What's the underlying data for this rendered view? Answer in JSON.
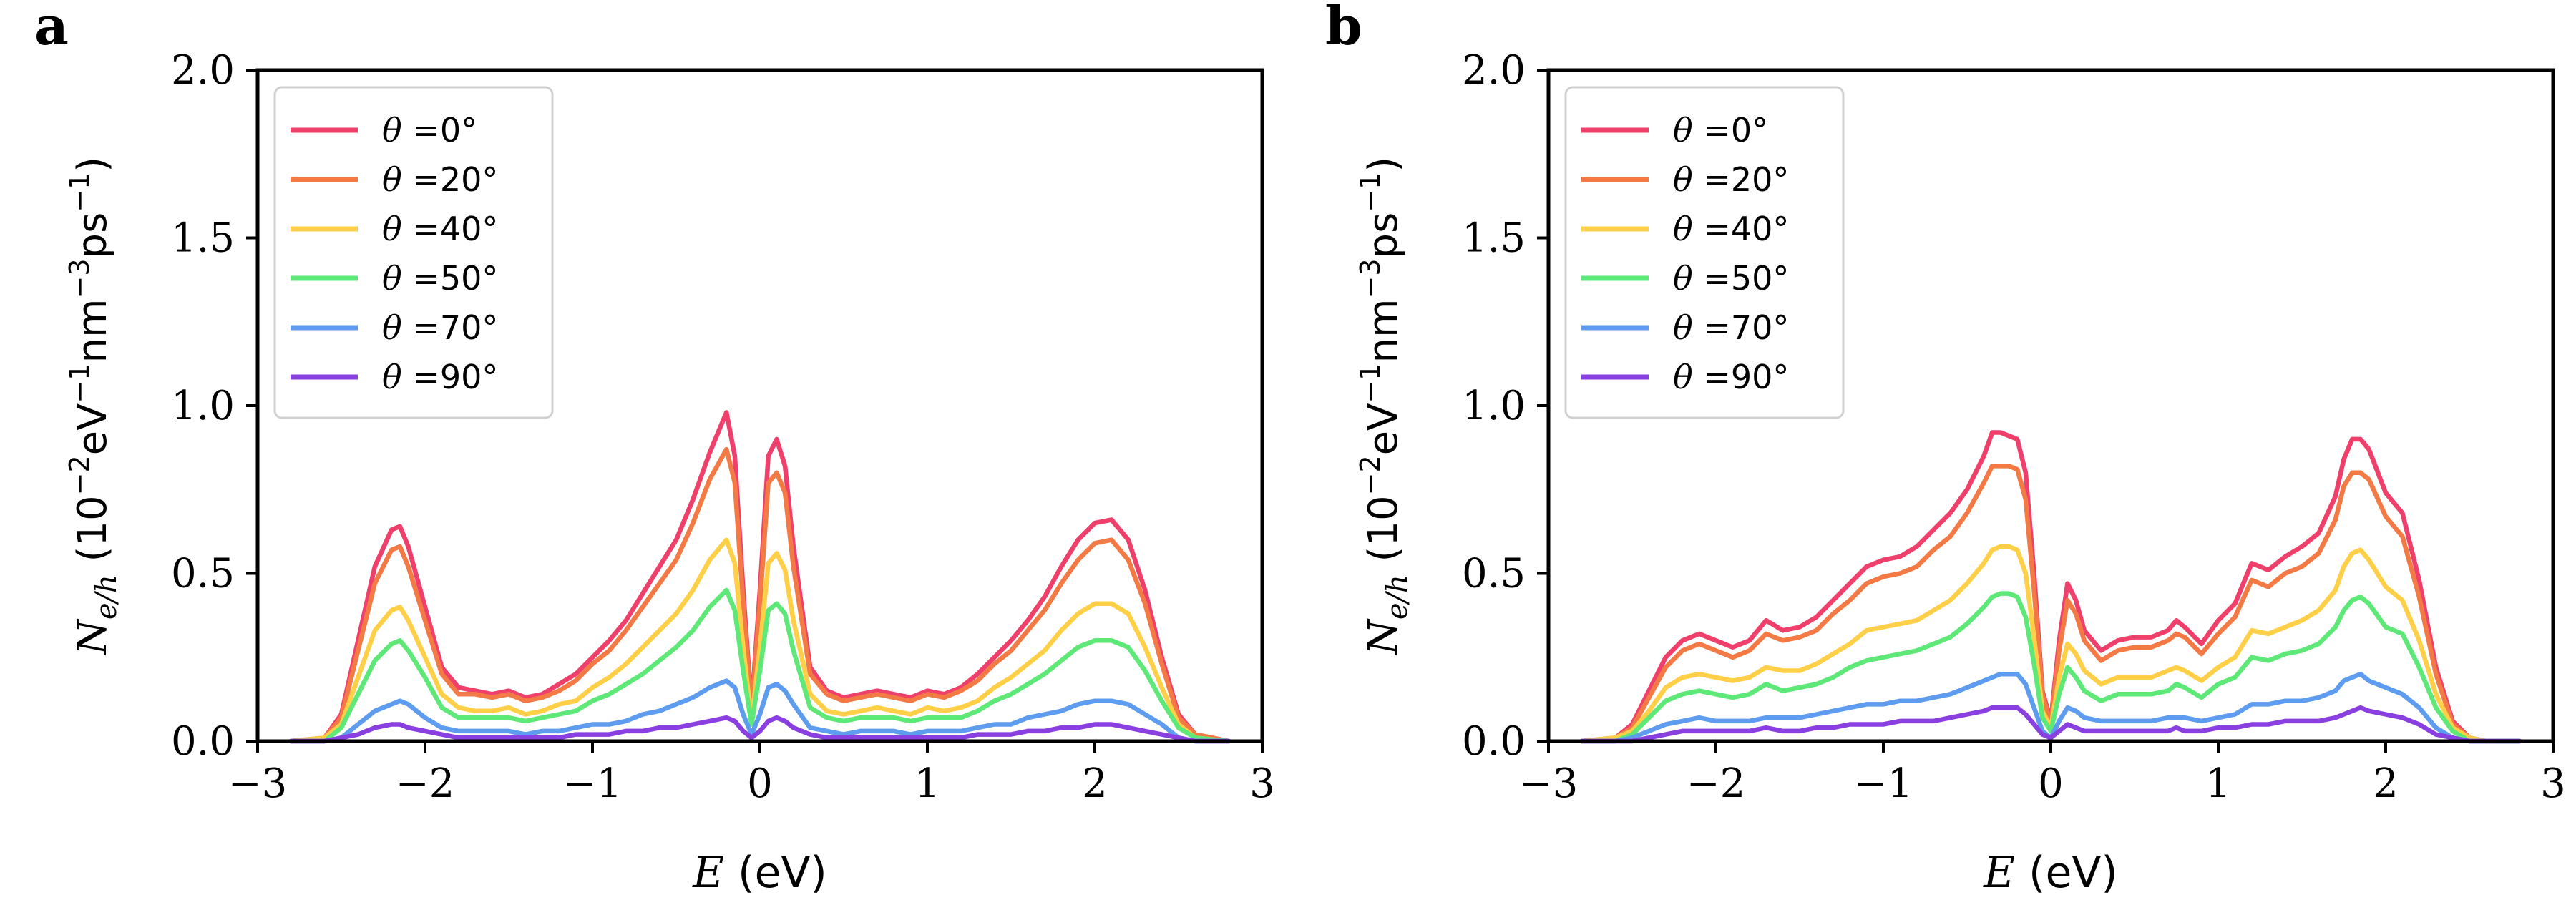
{
  "chart_data": [
    {
      "type": "line",
      "panel_label": "a",
      "xlabel": "E (eV)",
      "ylabel": "N_e/h (10^-2 eV^-1 nm^-3 ps^-1)",
      "xlim": [
        -3,
        3
      ],
      "ylim": [
        0,
        2
      ],
      "xticks": [
        "−3",
        "−2",
        "−1",
        "0",
        "1",
        "2",
        "3"
      ],
      "yticks": [
        "0.0",
        "0.5",
        "1.0",
        "1.5",
        "2.0"
      ],
      "legend_position": "top-left",
      "x": [
        -2.8,
        -2.6,
        -2.5,
        -2.4,
        -2.3,
        -2.2,
        -2.15,
        -2.1,
        -2.0,
        -1.9,
        -1.8,
        -1.7,
        -1.6,
        -1.5,
        -1.4,
        -1.3,
        -1.2,
        -1.1,
        -1.0,
        -0.9,
        -0.8,
        -0.7,
        -0.6,
        -0.5,
        -0.4,
        -0.3,
        -0.2,
        -0.15,
        -0.1,
        -0.05,
        0.0,
        0.05,
        0.1,
        0.15,
        0.2,
        0.3,
        0.4,
        0.5,
        0.6,
        0.7,
        0.8,
        0.9,
        1.0,
        1.1,
        1.2,
        1.3,
        1.4,
        1.5,
        1.6,
        1.7,
        1.8,
        1.9,
        2.0,
        2.1,
        2.2,
        2.3,
        2.4,
        2.5,
        2.6,
        2.8
      ],
      "series": [
        {
          "name": "θ =0°",
          "color": "#ef3f6b",
          "values": [
            0.0,
            0.01,
            0.08,
            0.3,
            0.52,
            0.63,
            0.64,
            0.58,
            0.4,
            0.22,
            0.16,
            0.15,
            0.14,
            0.15,
            0.13,
            0.14,
            0.17,
            0.2,
            0.25,
            0.3,
            0.36,
            0.44,
            0.52,
            0.6,
            0.72,
            0.86,
            0.98,
            0.85,
            0.45,
            0.1,
            0.45,
            0.85,
            0.9,
            0.82,
            0.58,
            0.22,
            0.15,
            0.13,
            0.14,
            0.15,
            0.14,
            0.13,
            0.15,
            0.14,
            0.16,
            0.2,
            0.25,
            0.3,
            0.36,
            0.43,
            0.52,
            0.6,
            0.65,
            0.66,
            0.6,
            0.45,
            0.25,
            0.08,
            0.02,
            0.0
          ]
        },
        {
          "name": "θ =20°",
          "color": "#f47a45",
          "values": [
            0.0,
            0.01,
            0.07,
            0.27,
            0.47,
            0.57,
            0.58,
            0.52,
            0.36,
            0.2,
            0.14,
            0.14,
            0.13,
            0.14,
            0.12,
            0.13,
            0.15,
            0.18,
            0.23,
            0.27,
            0.33,
            0.4,
            0.47,
            0.54,
            0.65,
            0.78,
            0.87,
            0.77,
            0.41,
            0.09,
            0.41,
            0.77,
            0.8,
            0.74,
            0.52,
            0.2,
            0.14,
            0.12,
            0.13,
            0.14,
            0.13,
            0.12,
            0.14,
            0.13,
            0.15,
            0.18,
            0.23,
            0.27,
            0.33,
            0.39,
            0.47,
            0.54,
            0.59,
            0.6,
            0.54,
            0.41,
            0.23,
            0.07,
            0.02,
            0.0
          ]
        },
        {
          "name": "θ =40°",
          "color": "#ffcf47",
          "values": [
            0.0,
            0.01,
            0.05,
            0.19,
            0.33,
            0.39,
            0.4,
            0.36,
            0.25,
            0.14,
            0.1,
            0.09,
            0.09,
            0.1,
            0.08,
            0.09,
            0.11,
            0.12,
            0.16,
            0.19,
            0.23,
            0.28,
            0.33,
            0.38,
            0.45,
            0.54,
            0.6,
            0.53,
            0.28,
            0.06,
            0.28,
            0.53,
            0.56,
            0.51,
            0.36,
            0.14,
            0.09,
            0.08,
            0.09,
            0.1,
            0.09,
            0.08,
            0.1,
            0.09,
            0.1,
            0.12,
            0.16,
            0.19,
            0.23,
            0.27,
            0.33,
            0.38,
            0.41,
            0.41,
            0.38,
            0.28,
            0.16,
            0.05,
            0.01,
            0.0
          ]
        },
        {
          "name": "θ =50°",
          "color": "#5ee878",
          "values": [
            0.0,
            0.0,
            0.04,
            0.14,
            0.24,
            0.29,
            0.3,
            0.27,
            0.19,
            0.1,
            0.07,
            0.07,
            0.07,
            0.07,
            0.06,
            0.07,
            0.08,
            0.09,
            0.12,
            0.14,
            0.17,
            0.2,
            0.24,
            0.28,
            0.33,
            0.4,
            0.45,
            0.39,
            0.21,
            0.05,
            0.21,
            0.39,
            0.41,
            0.38,
            0.27,
            0.1,
            0.07,
            0.06,
            0.07,
            0.07,
            0.07,
            0.06,
            0.07,
            0.07,
            0.07,
            0.09,
            0.12,
            0.14,
            0.17,
            0.2,
            0.24,
            0.28,
            0.3,
            0.3,
            0.28,
            0.21,
            0.12,
            0.04,
            0.01,
            0.0
          ]
        },
        {
          "name": "θ =70°",
          "color": "#5d9cee",
          "values": [
            0.0,
            0.0,
            0.01,
            0.05,
            0.09,
            0.11,
            0.12,
            0.11,
            0.07,
            0.04,
            0.03,
            0.03,
            0.03,
            0.03,
            0.02,
            0.03,
            0.03,
            0.04,
            0.05,
            0.05,
            0.06,
            0.08,
            0.09,
            0.11,
            0.13,
            0.16,
            0.18,
            0.16,
            0.08,
            0.02,
            0.08,
            0.16,
            0.17,
            0.15,
            0.11,
            0.04,
            0.03,
            0.02,
            0.03,
            0.03,
            0.03,
            0.02,
            0.03,
            0.03,
            0.03,
            0.04,
            0.05,
            0.05,
            0.07,
            0.08,
            0.09,
            0.11,
            0.12,
            0.12,
            0.11,
            0.08,
            0.05,
            0.01,
            0.0,
            0.0
          ]
        },
        {
          "name": "θ =90°",
          "color": "#8a3fe0",
          "values": [
            0.0,
            0.0,
            0.01,
            0.02,
            0.04,
            0.05,
            0.05,
            0.04,
            0.03,
            0.02,
            0.01,
            0.01,
            0.01,
            0.01,
            0.01,
            0.01,
            0.01,
            0.02,
            0.02,
            0.02,
            0.03,
            0.03,
            0.04,
            0.04,
            0.05,
            0.06,
            0.07,
            0.06,
            0.03,
            0.01,
            0.03,
            0.06,
            0.07,
            0.06,
            0.04,
            0.02,
            0.01,
            0.01,
            0.01,
            0.01,
            0.01,
            0.01,
            0.01,
            0.01,
            0.01,
            0.02,
            0.02,
            0.02,
            0.03,
            0.03,
            0.04,
            0.04,
            0.05,
            0.05,
            0.04,
            0.03,
            0.02,
            0.01,
            0.0,
            0.0
          ]
        }
      ]
    },
    {
      "type": "line",
      "panel_label": "b",
      "xlabel": "E (eV)",
      "ylabel": "N_e/h (10^-2 eV^-1 nm^-3 ps^-1)",
      "xlim": [
        -3,
        3
      ],
      "ylim": [
        0,
        2
      ],
      "xticks": [
        "−3",
        "−2",
        "−1",
        "0",
        "1",
        "2",
        "3"
      ],
      "yticks": [
        "0.0",
        "0.5",
        "1.0",
        "1.5",
        "2.0"
      ],
      "legend_position": "top-left",
      "x": [
        -2.8,
        -2.6,
        -2.5,
        -2.4,
        -2.3,
        -2.2,
        -2.1,
        -2.0,
        -1.9,
        -1.8,
        -1.7,
        -1.6,
        -1.5,
        -1.4,
        -1.3,
        -1.2,
        -1.1,
        -1.0,
        -0.9,
        -0.8,
        -0.7,
        -0.6,
        -0.5,
        -0.4,
        -0.35,
        -0.3,
        -0.25,
        -0.2,
        -0.15,
        -0.1,
        -0.05,
        0.0,
        0.05,
        0.1,
        0.15,
        0.2,
        0.3,
        0.4,
        0.5,
        0.6,
        0.7,
        0.75,
        0.8,
        0.9,
        1.0,
        1.1,
        1.2,
        1.3,
        1.4,
        1.5,
        1.6,
        1.7,
        1.75,
        1.8,
        1.85,
        1.9,
        2.0,
        2.1,
        2.2,
        2.3,
        2.4,
        2.5,
        2.6,
        2.8
      ],
      "series": [
        {
          "name": "θ =0°",
          "color": "#ef3f6b",
          "values": [
            0.0,
            0.01,
            0.05,
            0.15,
            0.25,
            0.3,
            0.32,
            0.3,
            0.28,
            0.3,
            0.36,
            0.33,
            0.34,
            0.37,
            0.42,
            0.47,
            0.52,
            0.54,
            0.55,
            0.58,
            0.63,
            0.68,
            0.75,
            0.85,
            0.92,
            0.92,
            0.91,
            0.9,
            0.8,
            0.5,
            0.15,
            0.06,
            0.3,
            0.47,
            0.42,
            0.33,
            0.27,
            0.3,
            0.31,
            0.31,
            0.33,
            0.36,
            0.34,
            0.29,
            0.36,
            0.41,
            0.53,
            0.51,
            0.55,
            0.58,
            0.62,
            0.73,
            0.84,
            0.9,
            0.9,
            0.87,
            0.74,
            0.68,
            0.48,
            0.22,
            0.06,
            0.01,
            0.0,
            0.0
          ]
        },
        {
          "name": "θ =20°",
          "color": "#f47a45",
          "values": [
            0.0,
            0.01,
            0.04,
            0.13,
            0.22,
            0.27,
            0.29,
            0.27,
            0.25,
            0.27,
            0.32,
            0.3,
            0.31,
            0.33,
            0.38,
            0.42,
            0.47,
            0.49,
            0.5,
            0.52,
            0.57,
            0.61,
            0.68,
            0.77,
            0.82,
            0.82,
            0.82,
            0.81,
            0.72,
            0.45,
            0.14,
            0.05,
            0.27,
            0.42,
            0.38,
            0.3,
            0.24,
            0.27,
            0.28,
            0.28,
            0.3,
            0.32,
            0.31,
            0.26,
            0.32,
            0.37,
            0.48,
            0.46,
            0.5,
            0.52,
            0.56,
            0.66,
            0.76,
            0.8,
            0.8,
            0.78,
            0.67,
            0.61,
            0.43,
            0.2,
            0.05,
            0.01,
            0.0,
            0.0
          ]
        },
        {
          "name": "θ =40°",
          "color": "#ffcf47",
          "values": [
            0.0,
            0.01,
            0.03,
            0.09,
            0.16,
            0.19,
            0.2,
            0.19,
            0.18,
            0.19,
            0.22,
            0.21,
            0.21,
            0.23,
            0.26,
            0.29,
            0.33,
            0.34,
            0.35,
            0.36,
            0.39,
            0.42,
            0.47,
            0.53,
            0.57,
            0.58,
            0.58,
            0.57,
            0.5,
            0.31,
            0.09,
            0.04,
            0.19,
            0.29,
            0.26,
            0.21,
            0.17,
            0.19,
            0.19,
            0.19,
            0.21,
            0.22,
            0.21,
            0.18,
            0.22,
            0.25,
            0.33,
            0.32,
            0.34,
            0.36,
            0.39,
            0.45,
            0.52,
            0.56,
            0.57,
            0.54,
            0.46,
            0.42,
            0.3,
            0.14,
            0.04,
            0.01,
            0.0,
            0.0
          ]
        },
        {
          "name": "θ =50°",
          "color": "#5ee878",
          "values": [
            0.0,
            0.0,
            0.02,
            0.07,
            0.12,
            0.14,
            0.15,
            0.14,
            0.13,
            0.14,
            0.17,
            0.15,
            0.16,
            0.17,
            0.19,
            0.22,
            0.24,
            0.25,
            0.26,
            0.27,
            0.29,
            0.31,
            0.35,
            0.4,
            0.43,
            0.44,
            0.44,
            0.43,
            0.37,
            0.23,
            0.07,
            0.03,
            0.14,
            0.22,
            0.19,
            0.15,
            0.12,
            0.14,
            0.14,
            0.14,
            0.15,
            0.17,
            0.16,
            0.13,
            0.17,
            0.19,
            0.25,
            0.24,
            0.26,
            0.27,
            0.29,
            0.34,
            0.39,
            0.42,
            0.43,
            0.41,
            0.34,
            0.32,
            0.22,
            0.1,
            0.03,
            0.0,
            0.0,
            0.0
          ]
        },
        {
          "name": "θ =70°",
          "color": "#5d9cee",
          "values": [
            0.0,
            0.0,
            0.01,
            0.03,
            0.05,
            0.06,
            0.07,
            0.06,
            0.06,
            0.06,
            0.07,
            0.07,
            0.07,
            0.08,
            0.09,
            0.1,
            0.11,
            0.11,
            0.12,
            0.12,
            0.13,
            0.14,
            0.16,
            0.18,
            0.19,
            0.2,
            0.2,
            0.2,
            0.17,
            0.1,
            0.03,
            0.01,
            0.06,
            0.1,
            0.09,
            0.07,
            0.06,
            0.06,
            0.06,
            0.06,
            0.07,
            0.07,
            0.07,
            0.06,
            0.07,
            0.08,
            0.11,
            0.11,
            0.12,
            0.12,
            0.13,
            0.15,
            0.18,
            0.19,
            0.2,
            0.18,
            0.16,
            0.14,
            0.1,
            0.04,
            0.01,
            0.0,
            0.0,
            0.0
          ]
        },
        {
          "name": "θ =90°",
          "color": "#8a3fe0",
          "values": [
            0.0,
            0.0,
            0.0,
            0.01,
            0.02,
            0.03,
            0.03,
            0.03,
            0.03,
            0.03,
            0.04,
            0.03,
            0.03,
            0.04,
            0.04,
            0.05,
            0.05,
            0.05,
            0.06,
            0.06,
            0.06,
            0.07,
            0.08,
            0.09,
            0.1,
            0.1,
            0.1,
            0.1,
            0.08,
            0.05,
            0.02,
            0.01,
            0.03,
            0.05,
            0.04,
            0.03,
            0.03,
            0.03,
            0.03,
            0.03,
            0.03,
            0.04,
            0.03,
            0.03,
            0.04,
            0.04,
            0.05,
            0.05,
            0.06,
            0.06,
            0.06,
            0.07,
            0.08,
            0.09,
            0.1,
            0.09,
            0.08,
            0.07,
            0.05,
            0.02,
            0.01,
            0.0,
            0.0,
            0.0
          ]
        }
      ]
    }
  ]
}
